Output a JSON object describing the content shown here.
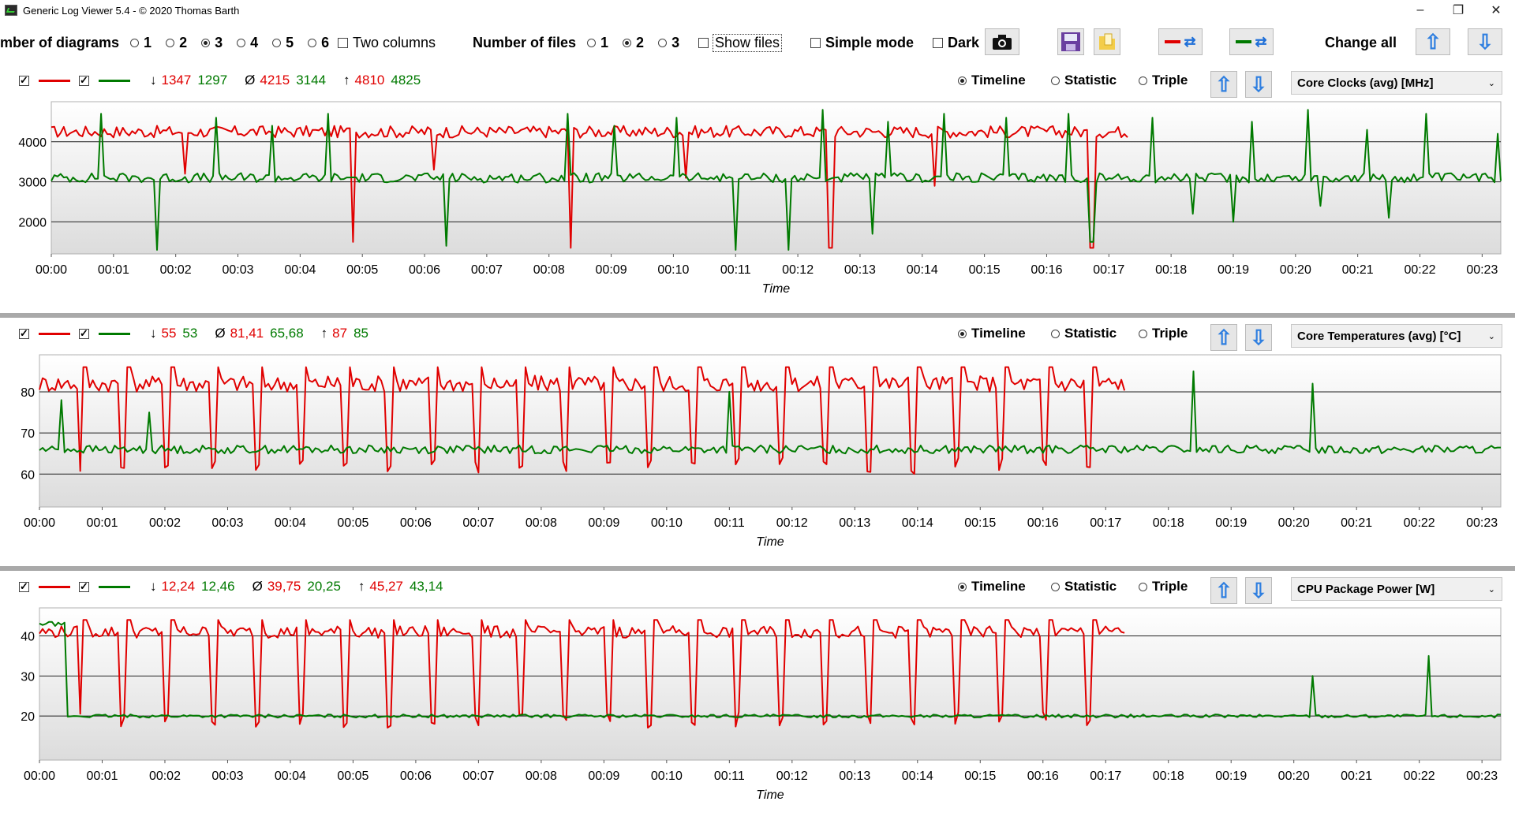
{
  "window": {
    "title": "Generic Log Viewer 5.4 - © 2020 Thomas Barth",
    "controls": [
      "–",
      "❐",
      "✕"
    ]
  },
  "toolbar": {
    "number_of_diagrams_label": "mber of diagrams",
    "diagram_options": [
      "1",
      "2",
      "3",
      "4",
      "5",
      "6"
    ],
    "diagram_selected": "3",
    "two_columns_label": "Two columns",
    "number_of_files_label": "Number of files",
    "file_options": [
      "1",
      "2",
      "3"
    ],
    "file_selected": "2",
    "show_files_label": "Show files",
    "simple_mode_label": "Simple mode",
    "dark_label": "Dark",
    "change_all_label": "Change all",
    "icons": [
      "camera-icon",
      "save-icon",
      "folder-icon",
      "swap-red-icon",
      "swap-green-icon",
      "arrow-up-icon",
      "arrow-down-icon"
    ],
    "colors": {
      "red": "#e00000",
      "green": "#007a00"
    }
  },
  "panels": [
    {
      "min_label": "↓",
      "min_red": "1347",
      "min_green": "1297",
      "avg_label": "Ø",
      "avg_red": "4215",
      "avg_green": "3144",
      "max_label": "↑",
      "max_red": "4810",
      "max_green": "4825",
      "view_options": [
        "Timeline",
        "Statistic",
        "Triple"
      ],
      "view_selected": "Timeline",
      "sensor": "Core Clocks (avg) [MHz]",
      "chart_data": {
        "type": "line",
        "xlabel": "Time",
        "x_ticks": [
          "00:00",
          "00:01",
          "00:02",
          "00:03",
          "00:04",
          "00:05",
          "00:06",
          "00:07",
          "00:08",
          "00:09",
          "00:10",
          "00:11",
          "00:12",
          "00:13",
          "00:14",
          "00:15",
          "00:16",
          "00:17",
          "00:18",
          "00:19",
          "00:20",
          "00:21",
          "00:22",
          "00:23"
        ],
        "y_ticks": [
          2000,
          3000,
          4000
        ],
        "ylim": [
          1200,
          5000
        ],
        "xlim_minutes": [
          0,
          23.3
        ],
        "series": [
          {
            "color": "#e00000",
            "end_minute": 17.3,
            "base": 4250,
            "noise": 150,
            "spikes": [
              {
                "t": 4.83,
                "v": 1500
              },
              {
                "t": 8.33,
                "v": 1350
              },
              {
                "t": 12.53,
                "v": 1350
              },
              {
                "t": 16.73,
                "v": 1350
              },
              {
                "t": 2.15,
                "v": 3200
              },
              {
                "t": 6.15,
                "v": 3300
              },
              {
                "t": 10.2,
                "v": 3100
              },
              {
                "t": 14.2,
                "v": 2900
              }
            ]
          },
          {
            "color": "#007a00",
            "end_minute": 23.3,
            "base": 3100,
            "noise": 120,
            "spikes": [
              {
                "t": 1.72,
                "v": 1300
              },
              {
                "t": 6.35,
                "v": 1400
              },
              {
                "t": 8.3,
                "v": 2800
              },
              {
                "t": 11.0,
                "v": 1300
              },
              {
                "t": 11.85,
                "v": 1300
              },
              {
                "t": 13.2,
                "v": 1700
              },
              {
                "t": 16.73,
                "v": 1500
              },
              {
                "t": 18.37,
                "v": 2200
              },
              {
                "t": 19.0,
                "v": 2000
              },
              {
                "t": 20.4,
                "v": 2400
              },
              {
                "t": 21.5,
                "v": 2100
              }
            ],
            "peaks": [
              {
                "t": 0.8,
                "v": 4700
              },
              {
                "t": 2.65,
                "v": 4600
              },
              {
                "t": 3.55,
                "v": 4400
              },
              {
                "t": 4.45,
                "v": 4700
              },
              {
                "t": 8.3,
                "v": 4700
              },
              {
                "t": 9.05,
                "v": 4400
              },
              {
                "t": 10.05,
                "v": 4600
              },
              {
                "t": 12.4,
                "v": 4800
              },
              {
                "t": 13.45,
                "v": 4500
              },
              {
                "t": 14.35,
                "v": 4700
              },
              {
                "t": 15.35,
                "v": 4600
              },
              {
                "t": 16.35,
                "v": 4700
              },
              {
                "t": 17.7,
                "v": 4600
              },
              {
                "t": 19.3,
                "v": 4500
              },
              {
                "t": 20.2,
                "v": 4800
              },
              {
                "t": 21.15,
                "v": 4300
              },
              {
                "t": 22.1,
                "v": 4700
              },
              {
                "t": 23.25,
                "v": 4200
              }
            ]
          }
        ]
      }
    },
    {
      "min_label": "↓",
      "min_red": "55",
      "min_green": "53",
      "avg_label": "Ø",
      "avg_red": "81,41",
      "avg_green": "65,68",
      "max_label": "↑",
      "max_red": "87",
      "max_green": "85",
      "view_options": [
        "Timeline",
        "Statistic",
        "Triple"
      ],
      "view_selected": "Timeline",
      "sensor": "Core Temperatures (avg) [°C]",
      "chart_data": {
        "type": "line",
        "xlabel": "Time",
        "x_ticks": [
          "00:00",
          "00:01",
          "00:02",
          "00:03",
          "00:04",
          "00:05",
          "00:06",
          "00:07",
          "00:08",
          "00:09",
          "00:10",
          "00:11",
          "00:12",
          "00:13",
          "00:14",
          "00:15",
          "00:16",
          "00:17",
          "00:18",
          "00:19",
          "00:20",
          "00:21",
          "00:22",
          "00:23"
        ],
        "y_ticks": [
          60,
          70,
          80
        ],
        "ylim": [
          52,
          89
        ],
        "xlim_minutes": [
          0,
          23.3
        ],
        "series": [
          {
            "color": "#e00000",
            "end_minute": 17.3,
            "base": 82,
            "noise": 2,
            "dips_every": 0.7,
            "dip_value": 60
          },
          {
            "color": "#007a00",
            "end_minute": 23.3,
            "base": 66,
            "noise": 1,
            "peaks": [
              {
                "t": 0.35,
                "v": 78
              },
              {
                "t": 1.75,
                "v": 75
              },
              {
                "t": 11.0,
                "v": 80
              },
              {
                "t": 18.4,
                "v": 85
              },
              {
                "t": 20.3,
                "v": 82
              }
            ]
          }
        ]
      }
    },
    {
      "min_label": "↓",
      "min_red": "12,24",
      "min_green": "12,46",
      "avg_label": "Ø",
      "avg_red": "39,75",
      "avg_green": "20,25",
      "max_label": "↑",
      "max_red": "45,27",
      "max_green": "43,14",
      "view_options": [
        "Timeline",
        "Statistic",
        "Triple"
      ],
      "view_selected": "Timeline",
      "sensor": "CPU Package Power [W]",
      "chart_data": {
        "type": "line",
        "xlabel": "Time",
        "x_ticks": [
          "00:00",
          "00:01",
          "00:02",
          "00:03",
          "00:04",
          "00:05",
          "00:06",
          "00:07",
          "00:08",
          "00:09",
          "00:10",
          "00:11",
          "00:12",
          "00:13",
          "00:14",
          "00:15",
          "00:16",
          "00:17",
          "00:18",
          "00:19",
          "00:20",
          "00:21",
          "00:22",
          "00:23"
        ],
        "y_ticks": [
          20,
          30,
          40
        ],
        "ylim": [
          9,
          47
        ],
        "xlim_minutes": [
          0,
          23.3
        ],
        "series": [
          {
            "color": "#e00000",
            "end_minute": 17.3,
            "base": 41,
            "noise": 1.5,
            "dips_every": 0.7,
            "dip_value": 17
          },
          {
            "color": "#007a00",
            "end_minute": 23.3,
            "base": 20,
            "noise": 0.4,
            "initial": 43,
            "peaks": [
              {
                "t": 20.3,
                "v": 30
              },
              {
                "t": 22.15,
                "v": 35
              }
            ]
          }
        ]
      }
    }
  ]
}
